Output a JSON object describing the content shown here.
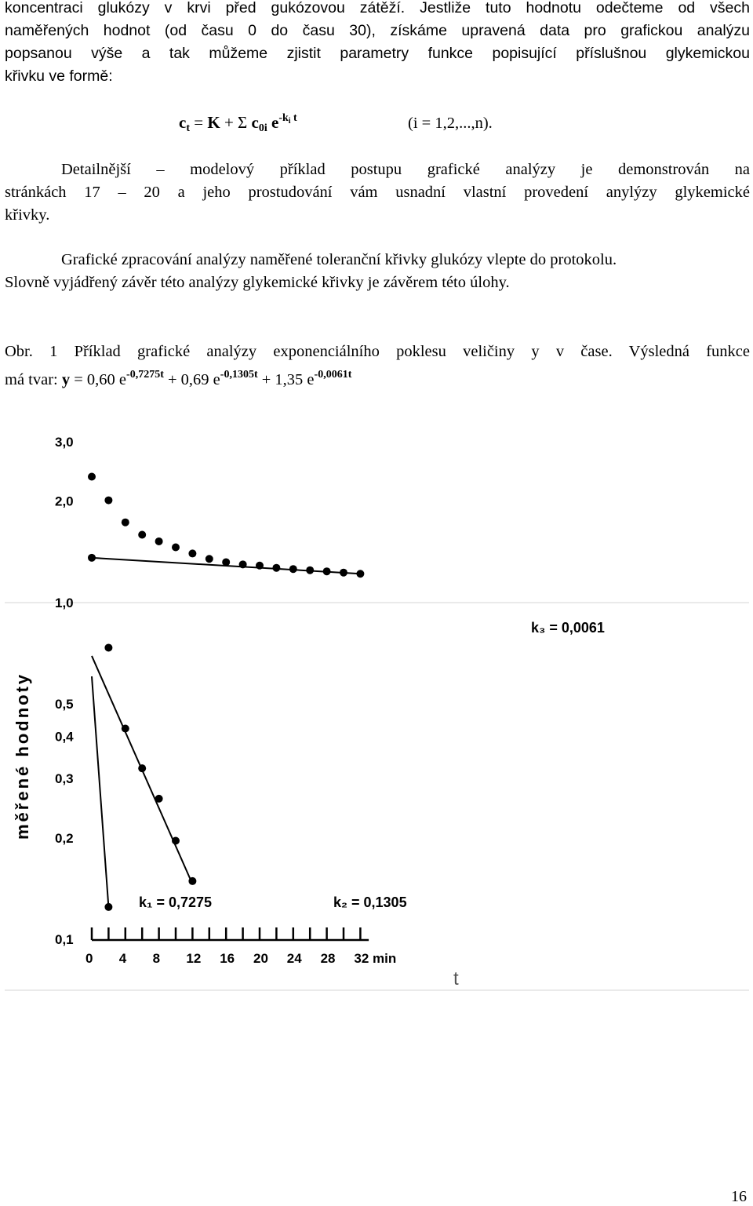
{
  "intro_lines": [
    "koncentraci glukózy v krvi před gukózovou zátěží. Jestliže tuto hodnotu odečteme od všech",
    "naměřených hodnot (od času 0 do času 30), získáme upravená data pro grafickou analýzu",
    "popsanou výše a tak můžeme zjistit parametry funkce popisující příslušnou glykemickou",
    "křivku ve formě:"
  ],
  "formula": {
    "c": "c",
    "t_sub": "t",
    "eq": " = ",
    "K": "K",
    "plus_sigma": " + Σ ",
    "c0": "c",
    "c0_sub": "0i",
    "e": " e",
    "exp_pre": "-k",
    "exp_i": "i",
    "exp_t": " t",
    "condition": "(i = 1,2,...,n)."
  },
  "paragraph2_lines": [
    "Detailnější – modelový příklad postupu grafické analýzy je demonstrován na",
    "stránkách 17 – 20 a jeho prostudování vám usnadní vlastní provedení anylýzy glykemické",
    "křivky."
  ],
  "paragraph3_lines": [
    "Grafické zpracování analýzy naměřené toleranční křivky glukózy vlepte do protokolu.",
    "Slovně vyjádřený závěr této analýzy glykemické křivky je závěrem této úlohy."
  ],
  "caption": {
    "line1": "Obr. 1 Příklad grafické analýzy exponenciálního poklesu veličiny y v čase. Výsledná funkce",
    "line2_prefix": "má tvar: ",
    "y": "y",
    "eq": " = 0,60 e",
    "exp1": "-0,7275t",
    "plus1": " + 0,69 e",
    "exp2": "-0,1305t",
    "plus2": " + 1,35 e",
    "exp3": "-0,0061t"
  },
  "chart_data": {
    "type": "scatter",
    "yscale": "log",
    "ylim": [
      0.1,
      3.0
    ],
    "xlim": [
      0,
      34
    ],
    "ylabel": "měřené hodnoty",
    "xlabel": "t",
    "x_unit": "min",
    "x_ticks": [
      0,
      4,
      8,
      12,
      16,
      20,
      24,
      28,
      32
    ],
    "x_tick_labels": [
      "0",
      "4",
      "8",
      "12",
      "16",
      "20",
      "24",
      "28",
      "32 min"
    ],
    "y_ticks": [
      3.0,
      2.0,
      1.0,
      0.5,
      0.4,
      0.3,
      0.2,
      0.1
    ],
    "y_tick_labels": [
      "3,0",
      "2,0",
      "1,0",
      "0,5",
      "0,4",
      "0,3",
      "0,2",
      "0,1"
    ],
    "series": [
      {
        "points": [
          {
            "x": 0,
            "y": 2.35
          },
          {
            "x": 2,
            "y": 2.0
          },
          {
            "x": 4,
            "y": 1.72
          },
          {
            "x": 6,
            "y": 1.58
          },
          {
            "x": 8,
            "y": 1.51
          },
          {
            "x": 10,
            "y": 1.45
          },
          {
            "x": 12,
            "y": 1.39
          },
          {
            "x": 14,
            "y": 1.34
          },
          {
            "x": 16,
            "y": 1.31
          },
          {
            "x": 18,
            "y": 1.29
          },
          {
            "x": 20,
            "y": 1.28
          },
          {
            "x": 22,
            "y": 1.26
          },
          {
            "x": 24,
            "y": 1.25
          },
          {
            "x": 26,
            "y": 1.24
          },
          {
            "x": 28,
            "y": 1.23
          },
          {
            "x": 30,
            "y": 1.22
          },
          {
            "x": 32,
            "y": 1.21
          }
        ]
      },
      {
        "points": [
          {
            "x": 0,
            "y": 1.35
          },
          {
            "x": 2,
            "y": 0.73
          },
          {
            "x": 4,
            "y": 0.42
          },
          {
            "x": 6,
            "y": 0.32
          },
          {
            "x": 8,
            "y": 0.26
          },
          {
            "x": 10,
            "y": 0.195
          },
          {
            "x": 12,
            "y": 0.148
          },
          {
            "x": 2,
            "y": 0.124
          }
        ]
      }
    ],
    "fit_lines": [
      {
        "label": "k₁ = 0,7275",
        "from": {
          "x": 0,
          "y": 0.6
        },
        "to": {
          "x": 2,
          "y": 0.124
        }
      },
      {
        "label": "k₂ = 0,1305",
        "from": {
          "x": 0,
          "y": 0.69
        },
        "to": {
          "x": 12,
          "y": 0.145
        }
      },
      {
        "label": "k₃ = 0,0061",
        "from": {
          "x": 0,
          "y": 1.35
        },
        "to": {
          "x": 32,
          "y": 1.21
        }
      }
    ]
  },
  "page_number": "16"
}
